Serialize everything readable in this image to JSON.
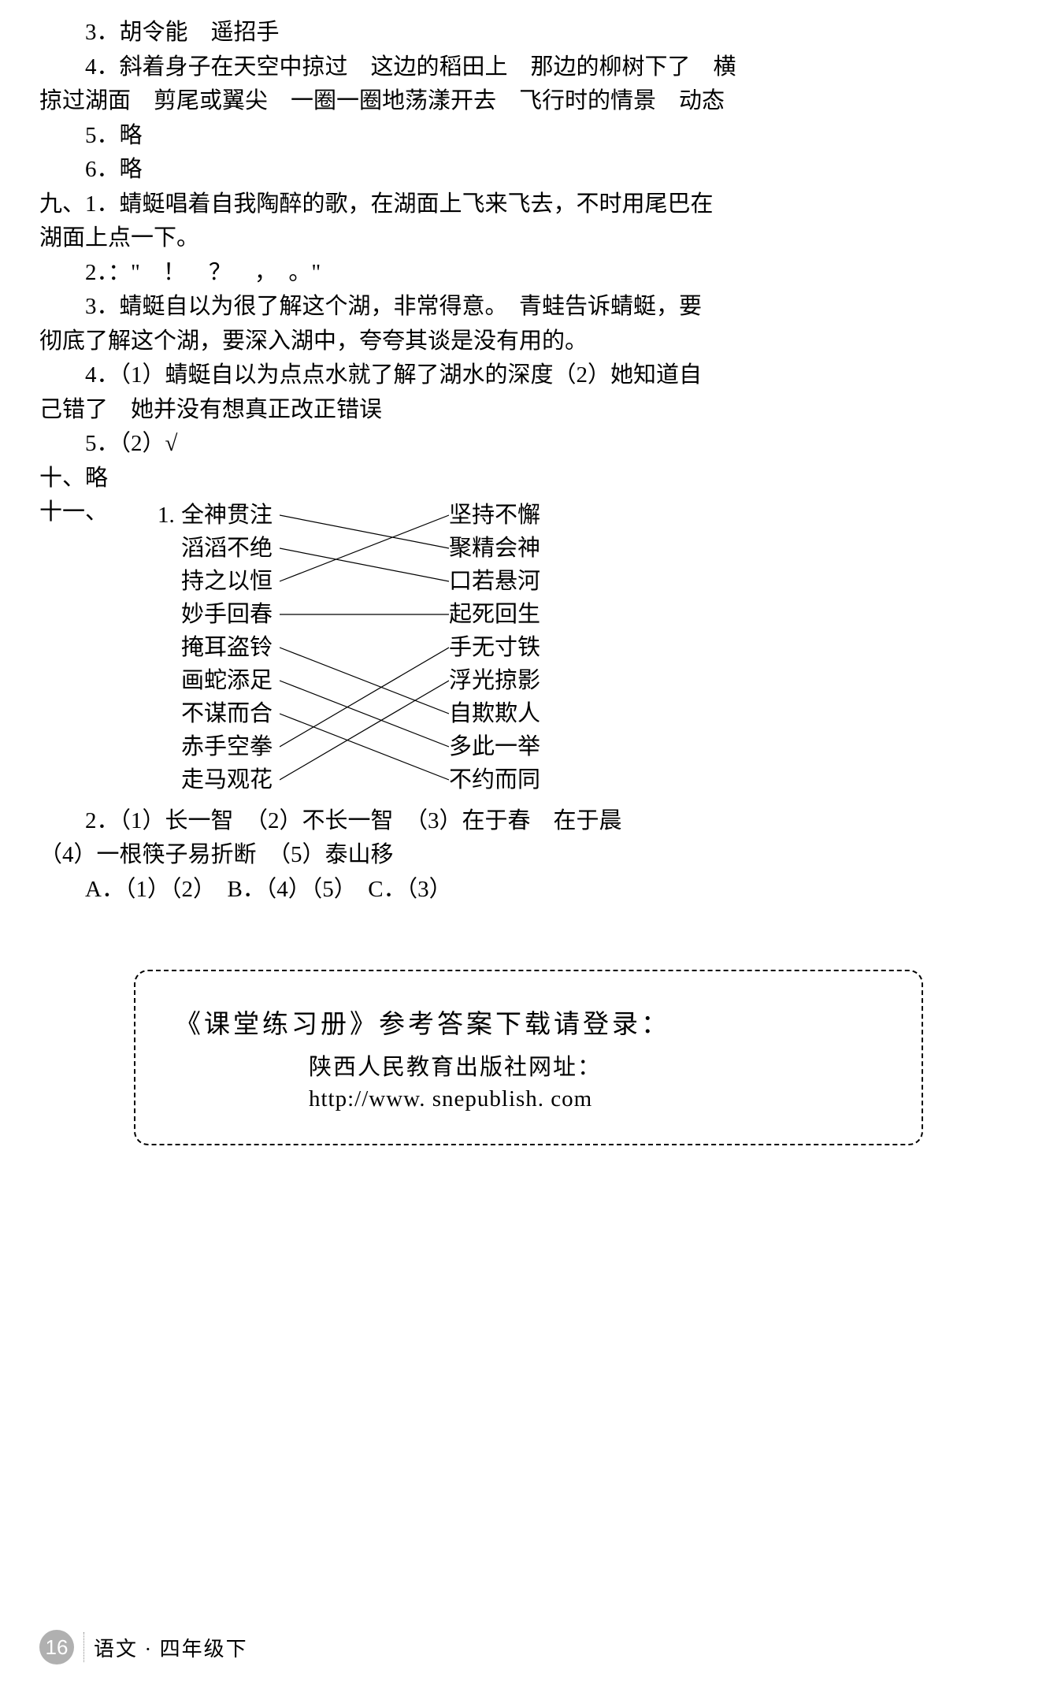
{
  "items": {
    "i3": "3．胡令能　遥招手",
    "i4a": "4．斜着身子在天空中掠过　这边的稻田上　那边的柳树下了　横",
    "i4b": "掠过湖面　剪尾或翼尖　一圈一圈地荡漾开去　飞行时的情景　动态",
    "i5": "5．略",
    "i6": "6．略"
  },
  "sec9": {
    "l1a": "九、1．蜻蜓唱着自我陶醉的歌，在湖面上飞来飞去，不时用尾巴在",
    "l1b": "湖面上点一下。",
    "l2": "2．：\"　！　？　，　。\"",
    "l3a": "3．蜻蜓自以为很了解这个湖，非常得意。　青蛙告诉蜻蜓，要",
    "l3b": "彻底了解这个湖，要深入湖中，夸夸其谈是没有用的。",
    "l4a": "4．（1）蜻蜓自以为点点水就了解了湖水的深度（2）她知道自",
    "l4b": "己错了　她并没有想真正改正错误",
    "l5": "5．（2）√"
  },
  "sec10": "十、略",
  "sec11prefix": "十一、",
  "matching": {
    "prefix": "1.",
    "left": [
      "全神贯注",
      "滔滔不绝",
      "持之以恒",
      "妙手回春",
      "掩耳盗铃",
      "画蛇添足",
      "不谋而合",
      "赤手空拳",
      "走马观花"
    ],
    "right": [
      "坚持不懈",
      "聚精会神",
      "口若悬河",
      "起死回生",
      "手无寸铁",
      "浮光掠影",
      "自欺欺人",
      "多此一举",
      "不约而同"
    ],
    "connections": [
      [
        0,
        1
      ],
      [
        1,
        2
      ],
      [
        2,
        0
      ],
      [
        3,
        3
      ],
      [
        4,
        6
      ],
      [
        5,
        7
      ],
      [
        6,
        8
      ],
      [
        7,
        4
      ],
      [
        8,
        5
      ]
    ],
    "line_color": "#000000",
    "line_width": 1.2
  },
  "sec11_2": {
    "a": "2．（1）长一智　（2）不长一智　（3）在于春　在于晨",
    "b": "（4）一根筷子易折断　（5）泰山移",
    "c": "A．（1）（2）　B．（4）（5）　C．（3）"
  },
  "footer": {
    "title": "《课堂练习册》参考答案下载请登录：",
    "sub": "陕西人民教育出版社网址：",
    "url": "http://www. snepublish. com"
  },
  "page": {
    "num": "16",
    "label": "语文 · 四年级下"
  }
}
